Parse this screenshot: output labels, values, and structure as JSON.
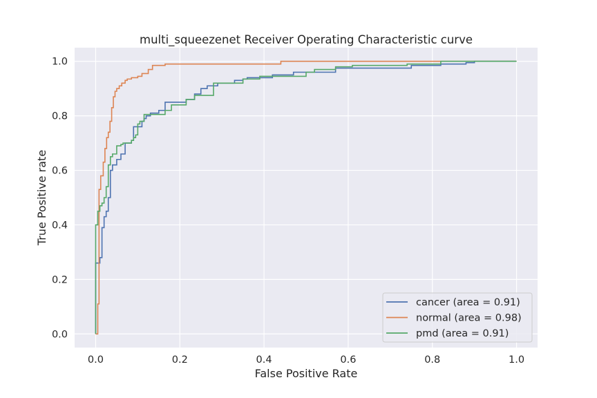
{
  "chart_data": {
    "type": "line",
    "title": "multi_squeezenet Receiver Operating Characteristic curve",
    "xlabel": "False Positive Rate",
    "ylabel": "True Positive rate",
    "xlim": [
      -0.05,
      1.05
    ],
    "ylim": [
      -0.05,
      1.05
    ],
    "x_ticks": [
      0.0,
      0.2,
      0.4,
      0.6,
      0.8,
      1.0
    ],
    "y_ticks": [
      0.0,
      0.2,
      0.4,
      0.6,
      0.8,
      1.0
    ],
    "x_tick_labels": [
      "0.0",
      "0.2",
      "0.4",
      "0.6",
      "0.8",
      "1.0"
    ],
    "y_tick_labels": [
      "0.0",
      "0.2",
      "0.4",
      "0.6",
      "0.8",
      "1.0"
    ],
    "grid": true,
    "legend_position": "lower-right",
    "background_color": "#eaeaf2",
    "grid_color": "#ffffff",
    "series": [
      {
        "name": "cancer (area = 0.91)",
        "color": "#4c72b0",
        "x": [
          0.0,
          0.0,
          0.01,
          0.01,
          0.015,
          0.015,
          0.02,
          0.02,
          0.025,
          0.025,
          0.03,
          0.03,
          0.035,
          0.035,
          0.04,
          0.04,
          0.05,
          0.05,
          0.06,
          0.06,
          0.07,
          0.07,
          0.085,
          0.085,
          0.09,
          0.09,
          0.11,
          0.11,
          0.115,
          0.115,
          0.12,
          0.12,
          0.13,
          0.13,
          0.15,
          0.15,
          0.165,
          0.165,
          0.215,
          0.215,
          0.235,
          0.235,
          0.25,
          0.25,
          0.265,
          0.265,
          0.29,
          0.29,
          0.33,
          0.33,
          0.35,
          0.35,
          0.36,
          0.36,
          0.42,
          0.42,
          0.47,
          0.47,
          0.57,
          0.57,
          0.75,
          0.75,
          0.82,
          0.82,
          0.88,
          0.88,
          0.9,
          0.9,
          1.0
        ],
        "y": [
          0.0,
          0.26,
          0.26,
          0.28,
          0.28,
          0.39,
          0.39,
          0.43,
          0.43,
          0.45,
          0.45,
          0.5,
          0.5,
          0.6,
          0.6,
          0.62,
          0.62,
          0.64,
          0.64,
          0.66,
          0.66,
          0.7,
          0.7,
          0.71,
          0.71,
          0.76,
          0.76,
          0.78,
          0.78,
          0.79,
          0.79,
          0.8,
          0.8,
          0.81,
          0.81,
          0.82,
          0.82,
          0.85,
          0.85,
          0.86,
          0.86,
          0.88,
          0.88,
          0.9,
          0.9,
          0.91,
          0.91,
          0.92,
          0.92,
          0.93,
          0.93,
          0.935,
          0.935,
          0.94,
          0.94,
          0.95,
          0.95,
          0.96,
          0.96,
          0.975,
          0.975,
          0.985,
          0.985,
          0.99,
          0.99,
          0.995,
          0.995,
          1.0,
          1.0
        ]
      },
      {
        "name": "normal (area = 0.98)",
        "color": "#dd8452",
        "x": [
          0.0,
          0.005,
          0.005,
          0.008,
          0.008,
          0.012,
          0.012,
          0.018,
          0.018,
          0.022,
          0.022,
          0.026,
          0.026,
          0.03,
          0.03,
          0.034,
          0.034,
          0.038,
          0.038,
          0.042,
          0.042,
          0.046,
          0.046,
          0.05,
          0.05,
          0.056,
          0.056,
          0.062,
          0.062,
          0.07,
          0.07,
          0.075,
          0.075,
          0.085,
          0.085,
          0.1,
          0.1,
          0.11,
          0.11,
          0.125,
          0.125,
          0.135,
          0.135,
          0.165,
          0.165,
          0.44,
          0.44,
          1.0
        ],
        "y": [
          0.0,
          0.0,
          0.11,
          0.11,
          0.53,
          0.53,
          0.58,
          0.58,
          0.63,
          0.63,
          0.68,
          0.68,
          0.72,
          0.72,
          0.74,
          0.74,
          0.78,
          0.78,
          0.83,
          0.83,
          0.87,
          0.87,
          0.89,
          0.89,
          0.9,
          0.9,
          0.91,
          0.91,
          0.92,
          0.92,
          0.93,
          0.93,
          0.935,
          0.935,
          0.94,
          0.94,
          0.945,
          0.945,
          0.955,
          0.955,
          0.97,
          0.97,
          0.985,
          0.985,
          0.99,
          0.99,
          1.0,
          1.0
        ]
      },
      {
        "name": "pmd (area = 0.91)",
        "color": "#55a868",
        "x": [
          0.0,
          0.0,
          0.005,
          0.005,
          0.01,
          0.01,
          0.015,
          0.015,
          0.02,
          0.02,
          0.025,
          0.025,
          0.03,
          0.03,
          0.035,
          0.035,
          0.04,
          0.04,
          0.05,
          0.05,
          0.06,
          0.06,
          0.065,
          0.065,
          0.085,
          0.085,
          0.09,
          0.09,
          0.095,
          0.095,
          0.1,
          0.1,
          0.105,
          0.105,
          0.115,
          0.115,
          0.165,
          0.165,
          0.18,
          0.18,
          0.215,
          0.215,
          0.235,
          0.235,
          0.28,
          0.28,
          0.35,
          0.35,
          0.39,
          0.39,
          0.5,
          0.5,
          0.52,
          0.52,
          0.57,
          0.57,
          0.61,
          0.61,
          0.74,
          0.74,
          0.82,
          0.82,
          1.0
        ],
        "y": [
          0.0,
          0.4,
          0.4,
          0.45,
          0.45,
          0.47,
          0.47,
          0.48,
          0.48,
          0.5,
          0.5,
          0.54,
          0.54,
          0.62,
          0.62,
          0.65,
          0.65,
          0.66,
          0.66,
          0.69,
          0.69,
          0.695,
          0.695,
          0.7,
          0.7,
          0.71,
          0.71,
          0.72,
          0.72,
          0.73,
          0.73,
          0.77,
          0.77,
          0.78,
          0.78,
          0.805,
          0.805,
          0.82,
          0.82,
          0.84,
          0.84,
          0.86,
          0.86,
          0.875,
          0.875,
          0.92,
          0.92,
          0.935,
          0.935,
          0.945,
          0.945,
          0.96,
          0.96,
          0.97,
          0.97,
          0.98,
          0.98,
          0.985,
          0.985,
          0.99,
          0.99,
          1.0,
          1.0
        ]
      }
    ]
  }
}
